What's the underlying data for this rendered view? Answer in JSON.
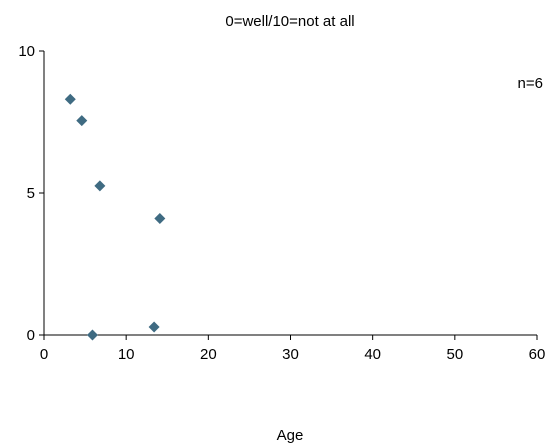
{
  "chart_data": {
    "type": "scatter",
    "title": "0=well/10=not at all",
    "xlabel": "Age",
    "ylabel": "",
    "annotation": "n=6",
    "xlim": [
      0,
      60
    ],
    "ylim": [
      0,
      10
    ],
    "x_ticks": [
      0,
      10,
      20,
      30,
      40,
      50,
      60
    ],
    "y_ticks": [
      0,
      5,
      10
    ],
    "x_tick_labels": [
      "0",
      "10",
      "20",
      "30",
      "40",
      "50",
      "60"
    ],
    "y_tick_labels": [
      "0",
      "5",
      "10"
    ],
    "grid": false,
    "legend": "none",
    "marker": "diamond",
    "marker_color": "#3f6b82",
    "series": [
      {
        "points": [
          {
            "x": 3.2,
            "y": 8.3
          },
          {
            "x": 4.6,
            "y": 7.55
          },
          {
            "x": 6.8,
            "y": 5.25
          },
          {
            "x": 14.1,
            "y": 4.1
          },
          {
            "x": 5.9,
            "y": 0.0
          },
          {
            "x": 13.4,
            "y": 0.28
          }
        ]
      }
    ]
  }
}
